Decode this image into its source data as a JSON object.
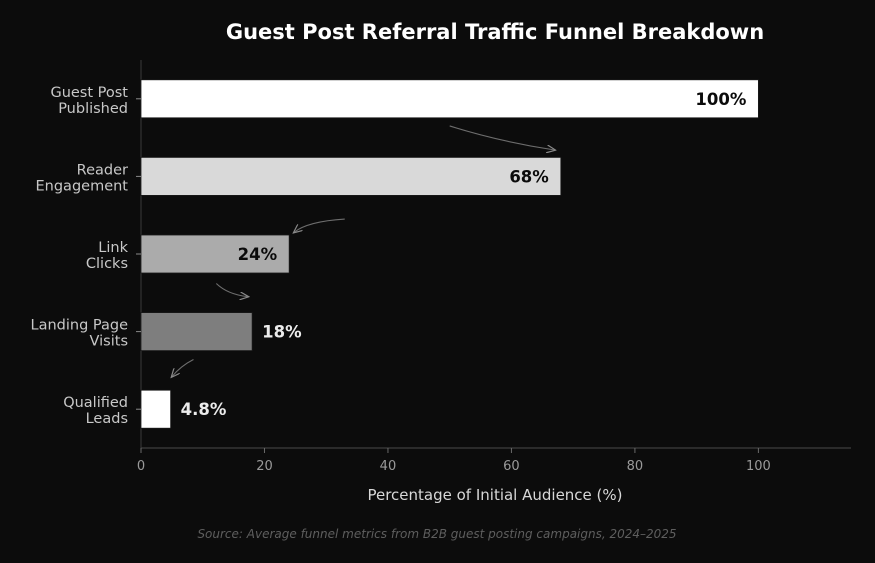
{
  "chart_data": {
    "type": "bar",
    "orientation": "horizontal",
    "title": "Guest Post Referral Traffic Funnel Breakdown",
    "xlabel": "Percentage of Initial Audience (%)",
    "ylabel": "",
    "xlim": [
      0,
      115
    ],
    "xticks": [
      0,
      20,
      40,
      60,
      80,
      100
    ],
    "grid": false,
    "categories": [
      [
        "Guest Post",
        "Published"
      ],
      [
        "Reader",
        "Engagement"
      ],
      [
        "Link",
        "Clicks"
      ],
      [
        "Landing Page",
        "Visits"
      ],
      [
        "Qualified",
        "Leads"
      ]
    ],
    "values": [
      100,
      68,
      24,
      18,
      4.8
    ],
    "data_labels": [
      "100%",
      "68%",
      "24%",
      "18%",
      "4.8%"
    ],
    "bar_colors": [
      "#ffffff",
      "#d9d9d9",
      "#ababab",
      "#7e7e7e",
      "#ffffff"
    ],
    "source": "Source: Average funnel metrics from B2B guest posting campaigns, 2024–2025"
  }
}
